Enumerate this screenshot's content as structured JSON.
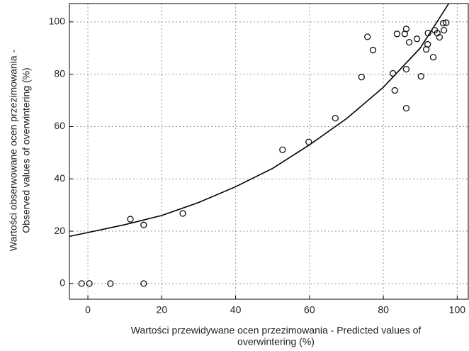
{
  "chart_data": {
    "type": "scatter",
    "xlabel_lines": [
      "Wartości przewidywane ocen przezimowania - Predicted values of",
      "overwintering (%)"
    ],
    "ylabel_lines": [
      "Wartości obserwowane ocen przezimowania -",
      "Observed values of overwintering (%)"
    ],
    "xlim": [
      -5,
      103
    ],
    "ylim": [
      -6,
      107
    ],
    "xticks": [
      0,
      20,
      40,
      60,
      80,
      100
    ],
    "yticks": [
      0,
      20,
      40,
      60,
      80,
      100
    ],
    "grid": true,
    "color": "#111111",
    "series": [
      {
        "x": [
          -1.7,
          0.4,
          6.1,
          15.1,
          11.5,
          15.1,
          25.7,
          52.7,
          59.8,
          67,
          74.1,
          75.7,
          77.2,
          82.6,
          83.1,
          83.7,
          85.8,
          86.2,
          86.2,
          86.2,
          87,
          89.1,
          90.2,
          91.6,
          92,
          92.1,
          93.5,
          93.9,
          94.6,
          95.2,
          96.2,
          96.4,
          97
        ],
        "values": [
          0,
          0,
          0,
          0,
          24.6,
          22.4,
          26.8,
          51.1,
          54.1,
          63.2,
          78.9,
          94.3,
          89.2,
          80.3,
          73.8,
          95.4,
          95.4,
          97.3,
          81.9,
          67,
          92.2,
          93.5,
          79.2,
          89.5,
          91.4,
          95.7,
          86.5,
          96.8,
          95.7,
          94.1,
          99.5,
          96.8,
          99.7
        ]
      }
    ],
    "fit": {
      "x": [
        -5,
        0,
        10,
        20,
        30,
        40,
        50,
        60,
        70,
        80,
        90,
        97.7
      ],
      "values": [
        18,
        19.5,
        22.5,
        26,
        31,
        37,
        44,
        53,
        63,
        75,
        90,
        107
      ]
    }
  }
}
